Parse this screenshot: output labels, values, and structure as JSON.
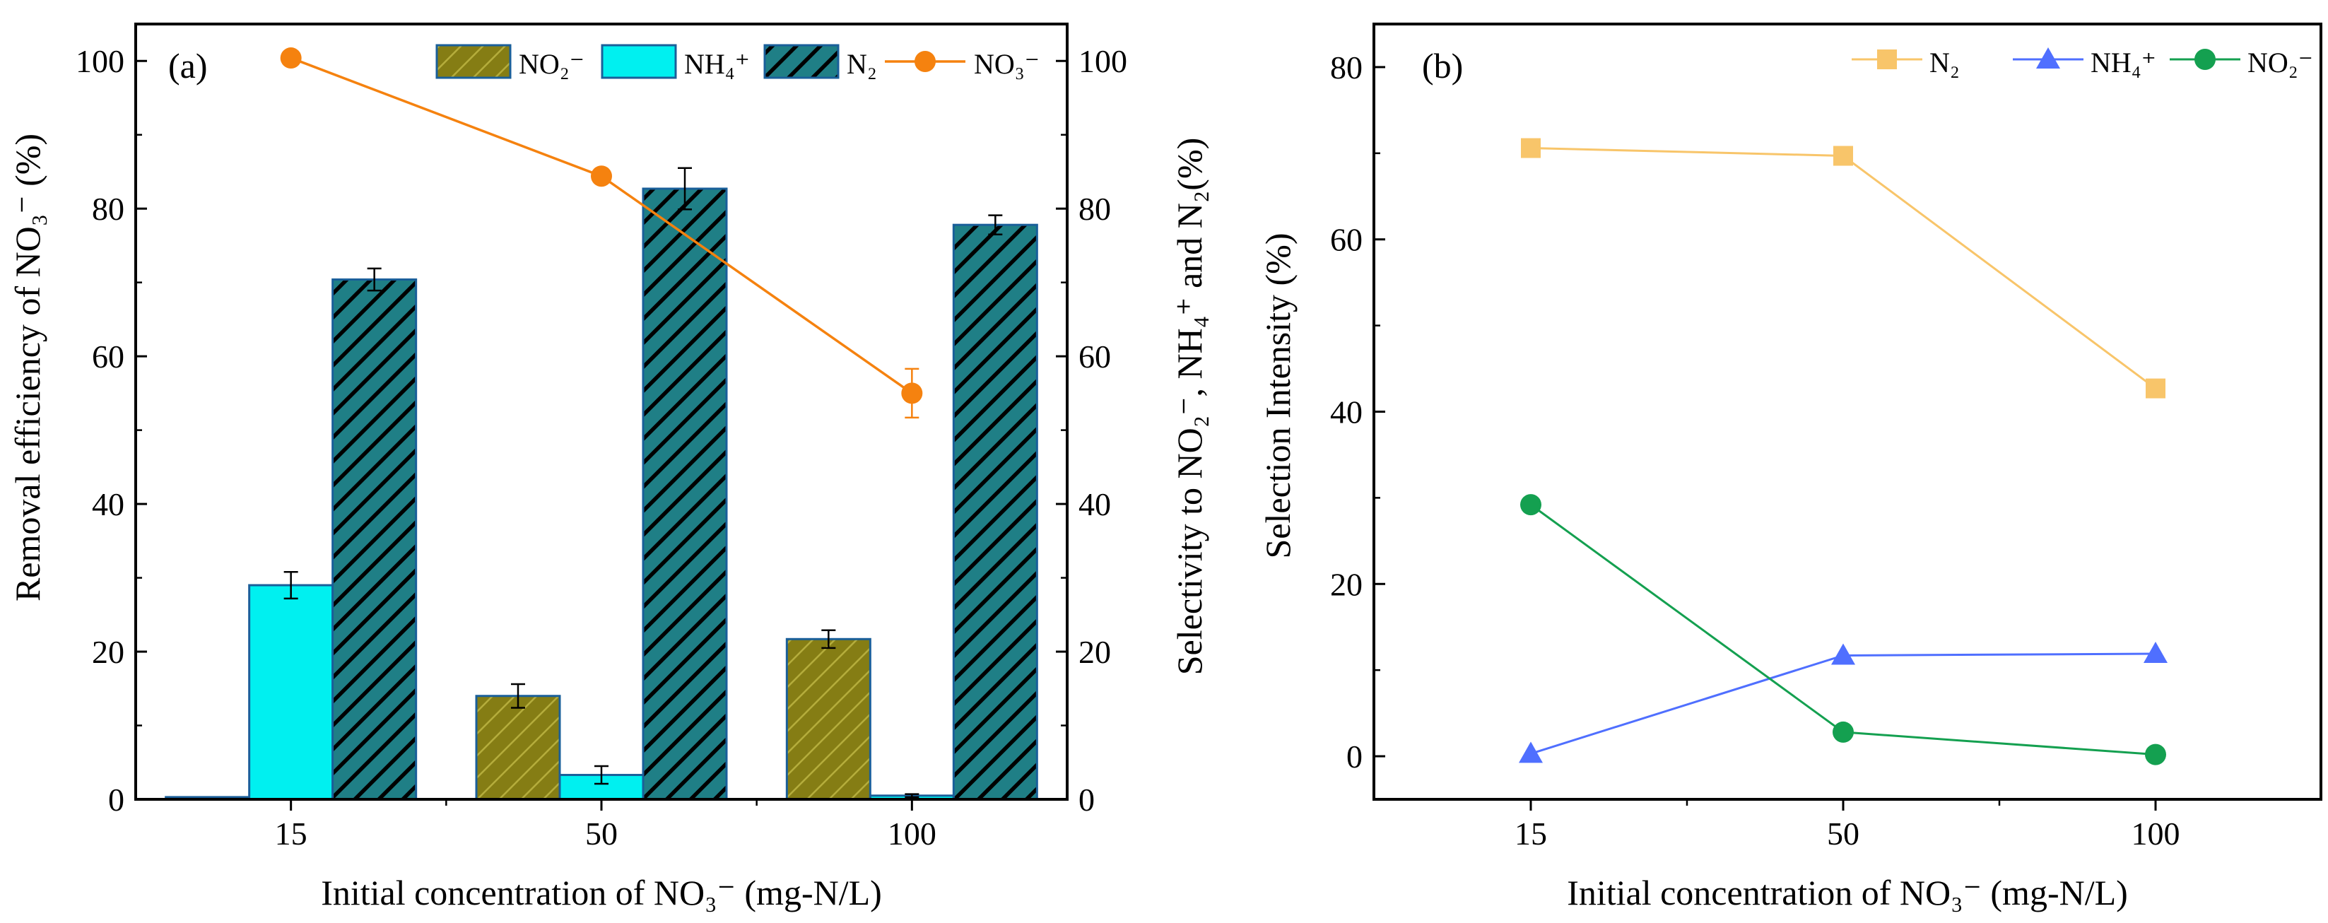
{
  "figure": {
    "panel_a_label": "(a)",
    "panel_b_label": "(b)"
  },
  "colors": {
    "no2_bar": "#857d14",
    "nh4_bar": "#00f0f0",
    "n2_bar": "#1f7f86",
    "no3_line": "#f5820f",
    "n2_line": "#f8c56a",
    "nh4_line": "#4f6fff",
    "no2_line": "#14a050",
    "bar_border": "#1a5f9a",
    "hatch": "#000000"
  },
  "chart_data": [
    {
      "id": "a",
      "type": "bar",
      "title": "",
      "xlabel": "Initial concentration of NO₃⁻ (mg-N/L)",
      "ylabel": "Removal efficiency of NO₃⁻ (%)",
      "y2label": "Selectivity to NO₂⁻, NH₄⁺ and N₂(%)",
      "categories": [
        "15",
        "50",
        "100"
      ],
      "ylim": [
        0,
        105
      ],
      "y2lim": [
        0,
        105
      ],
      "yticks": [
        0,
        20,
        40,
        60,
        80,
        100
      ],
      "y2ticks": [
        0,
        20,
        40,
        60,
        80,
        100
      ],
      "grid": false,
      "legend_position": "top-right",
      "bar_series": [
        {
          "name": "NO₂⁻",
          "values": [
            0.3,
            14.0,
            21.7
          ],
          "errors": [
            0.1,
            1.6,
            1.2
          ],
          "hatch": "light",
          "color_key": "no2_bar"
        },
        {
          "name": "NH₄⁺",
          "values": [
            29.0,
            3.3,
            0.5
          ],
          "errors": [
            1.8,
            1.2,
            0.2
          ],
          "hatch": "none",
          "color_key": "nh4_bar"
        },
        {
          "name": "N₂",
          "values": [
            70.4,
            82.7,
            77.8
          ],
          "errors": [
            1.5,
            2.8,
            1.3
          ],
          "hatch": "dense",
          "color_key": "n2_bar"
        }
      ],
      "line_series": [
        {
          "name": "NO₃⁻",
          "axis": "left",
          "values": [
            100.4,
            84.4,
            55.0
          ],
          "errors": [
            0,
            0,
            3.3
          ],
          "marker": "circle",
          "color_key": "no3_line"
        }
      ]
    },
    {
      "id": "b",
      "type": "line",
      "title": "",
      "xlabel": "Initial concentration of NO₃⁻ (mg-N/L)",
      "ylabel": "Selection Intensity (%)",
      "x": [
        "15",
        "50",
        "100"
      ],
      "ylim": [
        -5,
        85
      ],
      "yticks": [
        0,
        20,
        40,
        60,
        80
      ],
      "grid": false,
      "legend_position": "top-right",
      "series": [
        {
          "name": "N₂",
          "values": [
            70.6,
            69.7,
            42.7
          ],
          "marker": "square",
          "color_key": "n2_line"
        },
        {
          "name": "NH₄⁺",
          "values": [
            0.3,
            11.7,
            11.9
          ],
          "marker": "triangle",
          "color_key": "nh4_line"
        },
        {
          "name": "NO₂⁻",
          "values": [
            29.2,
            2.8,
            0.2
          ],
          "marker": "circle",
          "color_key": "no2_line"
        }
      ]
    }
  ]
}
